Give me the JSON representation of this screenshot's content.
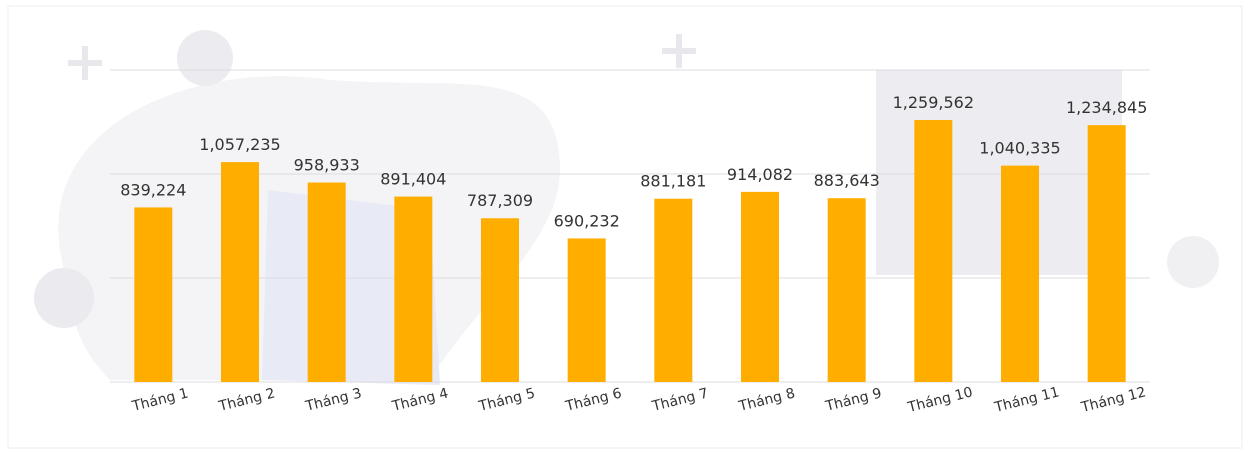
{
  "chart_data": {
    "type": "bar",
    "categories": [
      "Tháng 1",
      "Tháng 2",
      "Tháng 3",
      "Tháng 4",
      "Tháng 5",
      "Tháng 6",
      "Tháng 7",
      "Tháng 8",
      "Tháng 9",
      "Tháng 10",
      "Tháng 11",
      "Tháng 12"
    ],
    "values": [
      839224,
      1057235,
      958933,
      891404,
      787309,
      690232,
      881181,
      914082,
      883643,
      1259562,
      1040335,
      1234845
    ],
    "value_labels": [
      "839,224",
      "1,057,235",
      "958,933",
      "891,404",
      "787,309",
      "690,232",
      "881,181",
      "914,082",
      "883,643",
      "1,259,562",
      "1,040,335",
      "1,234,845"
    ],
    "color": "#ffae00",
    "ylim": [
      0,
      1500000
    ],
    "yticks": [
      0,
      500000,
      1000000,
      1500000
    ],
    "grid": true
  }
}
